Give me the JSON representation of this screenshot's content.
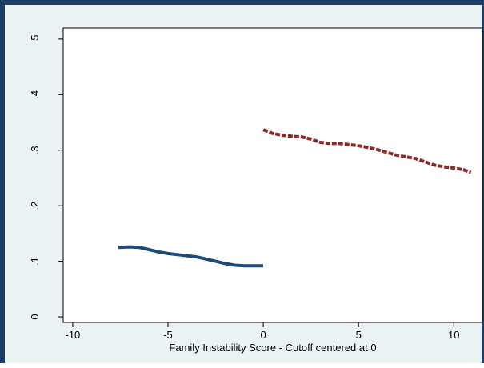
{
  "chart_data": {
    "type": "line",
    "title": "",
    "xlabel": "Family Instability Score - Cutoff centered at 0",
    "ylabel": "",
    "xlim": [
      -10.5,
      11.5
    ],
    "ylim": [
      -0.01,
      0.52
    ],
    "x_ticks": [
      -10,
      -5,
      0,
      5,
      10
    ],
    "x_tick_labels": [
      "-10",
      "-5",
      "0",
      "5",
      "10"
    ],
    "y_ticks": [
      0,
      0.1,
      0.2,
      0.3,
      0.4,
      0.5
    ],
    "y_tick_labels": [
      "0",
      ".1",
      ".2",
      ".3",
      ".4",
      ".5"
    ],
    "grid": false,
    "legend": "none",
    "series": [
      {
        "color": "#1d4a7a",
        "style": "solid",
        "x": [
          -7.6,
          -7.0,
          -6.5,
          -6.0,
          -5.5,
          -5.0,
          -4.5,
          -4.0,
          -3.5,
          -3.0,
          -2.5,
          -2.0,
          -1.5,
          -1.0,
          -0.5,
          0.0
        ],
        "y": [
          0.125,
          0.126,
          0.125,
          0.121,
          0.117,
          0.114,
          0.112,
          0.11,
          0.108,
          0.104,
          0.1,
          0.096,
          0.093,
          0.092,
          0.092,
          0.092
        ]
      },
      {
        "color": "#8b2a2a",
        "style": "dashed",
        "x": [
          0.0,
          0.5,
          1.0,
          1.5,
          2.0,
          2.5,
          3.0,
          3.5,
          4.0,
          4.5,
          5.0,
          5.5,
          6.0,
          6.5,
          7.0,
          7.5,
          8.0,
          8.5,
          9.0,
          9.5,
          10.0,
          10.5,
          10.9
        ],
        "y": [
          0.337,
          0.33,
          0.327,
          0.325,
          0.324,
          0.32,
          0.314,
          0.312,
          0.312,
          0.31,
          0.308,
          0.305,
          0.301,
          0.296,
          0.291,
          0.288,
          0.285,
          0.279,
          0.273,
          0.27,
          0.268,
          0.265,
          0.26
        ]
      }
    ]
  }
}
